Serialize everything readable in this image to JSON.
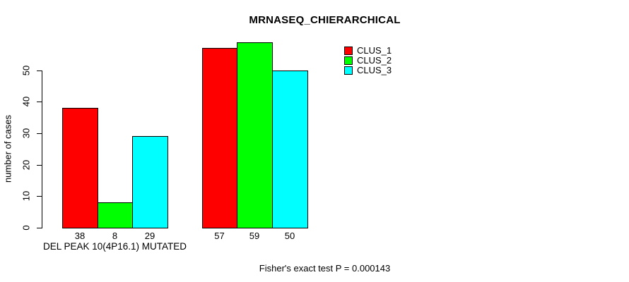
{
  "chart_data": {
    "type": "bar",
    "title": "MRNASEQ_CHIERARCHICAL",
    "ylabel": "number of cases",
    "xlabel": "",
    "ylim": [
      0,
      50
    ],
    "yticks": [
      0,
      10,
      20,
      30,
      40,
      50
    ],
    "grid": false,
    "legend_position": "top-right",
    "series": [
      {
        "name": "CLUS_1",
        "color": "#FF0000"
      },
      {
        "name": "CLUS_2",
        "color": "#00FF00"
      },
      {
        "name": "CLUS_3",
        "color": "#00FFFF"
      }
    ],
    "groups": [
      {
        "label": "DEL PEAK 10(4P16.1) MUTATED",
        "values": [
          38,
          8,
          29
        ]
      },
      {
        "label": "",
        "values": [
          57,
          59,
          50
        ]
      }
    ],
    "bar_value_labels_shown": true,
    "annotation": "Fisher's exact test P = 0.000143",
    "axis_color": "#000000",
    "background_color": "#FFFFFF"
  }
}
